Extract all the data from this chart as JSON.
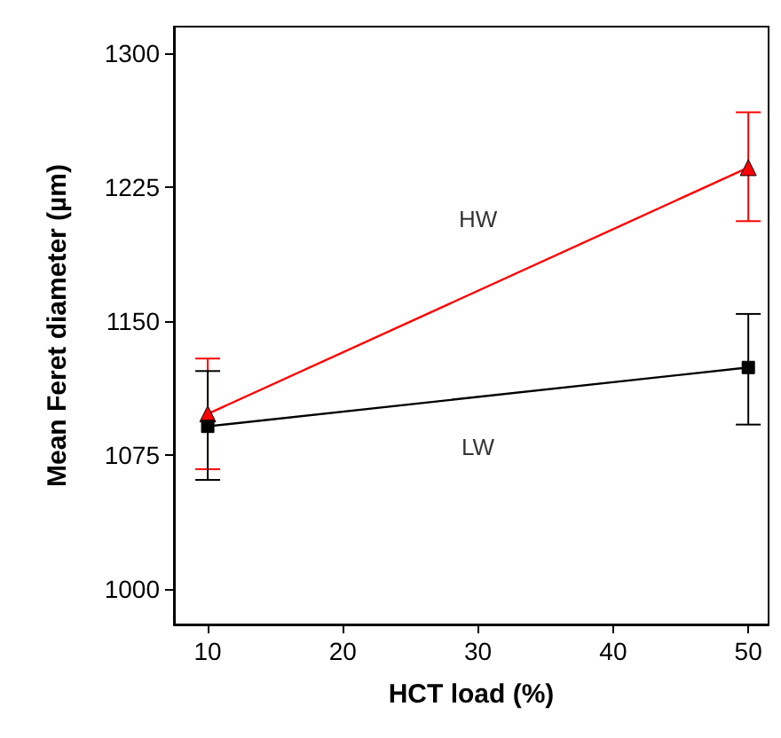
{
  "chart_data": {
    "type": "line",
    "xlabel": "HCT load (%)",
    "ylabel": "Mean Feret diameter (µm)",
    "x": [
      10,
      50
    ],
    "series": [
      {
        "name": "HW",
        "color": "#ff0000",
        "values": [
          1098,
          1236
        ],
        "errors": [
          [
            1067,
            1129
          ],
          [
            1206,
            1267
          ]
        ],
        "marker": "triangle"
      },
      {
        "name": "LW",
        "color": "#000000",
        "values": [
          1091,
          1124
        ],
        "errors": [
          [
            1061,
            1122
          ],
          [
            1092,
            1154
          ]
        ],
        "marker": "square"
      }
    ],
    "xlim": [
      7.5,
      51.5
    ],
    "ylim": [
      980,
      1315
    ],
    "xticks": [
      10,
      20,
      30,
      40,
      50
    ],
    "yticks": [
      1000,
      1075,
      1150,
      1225,
      1300
    ],
    "grid": false
  }
}
